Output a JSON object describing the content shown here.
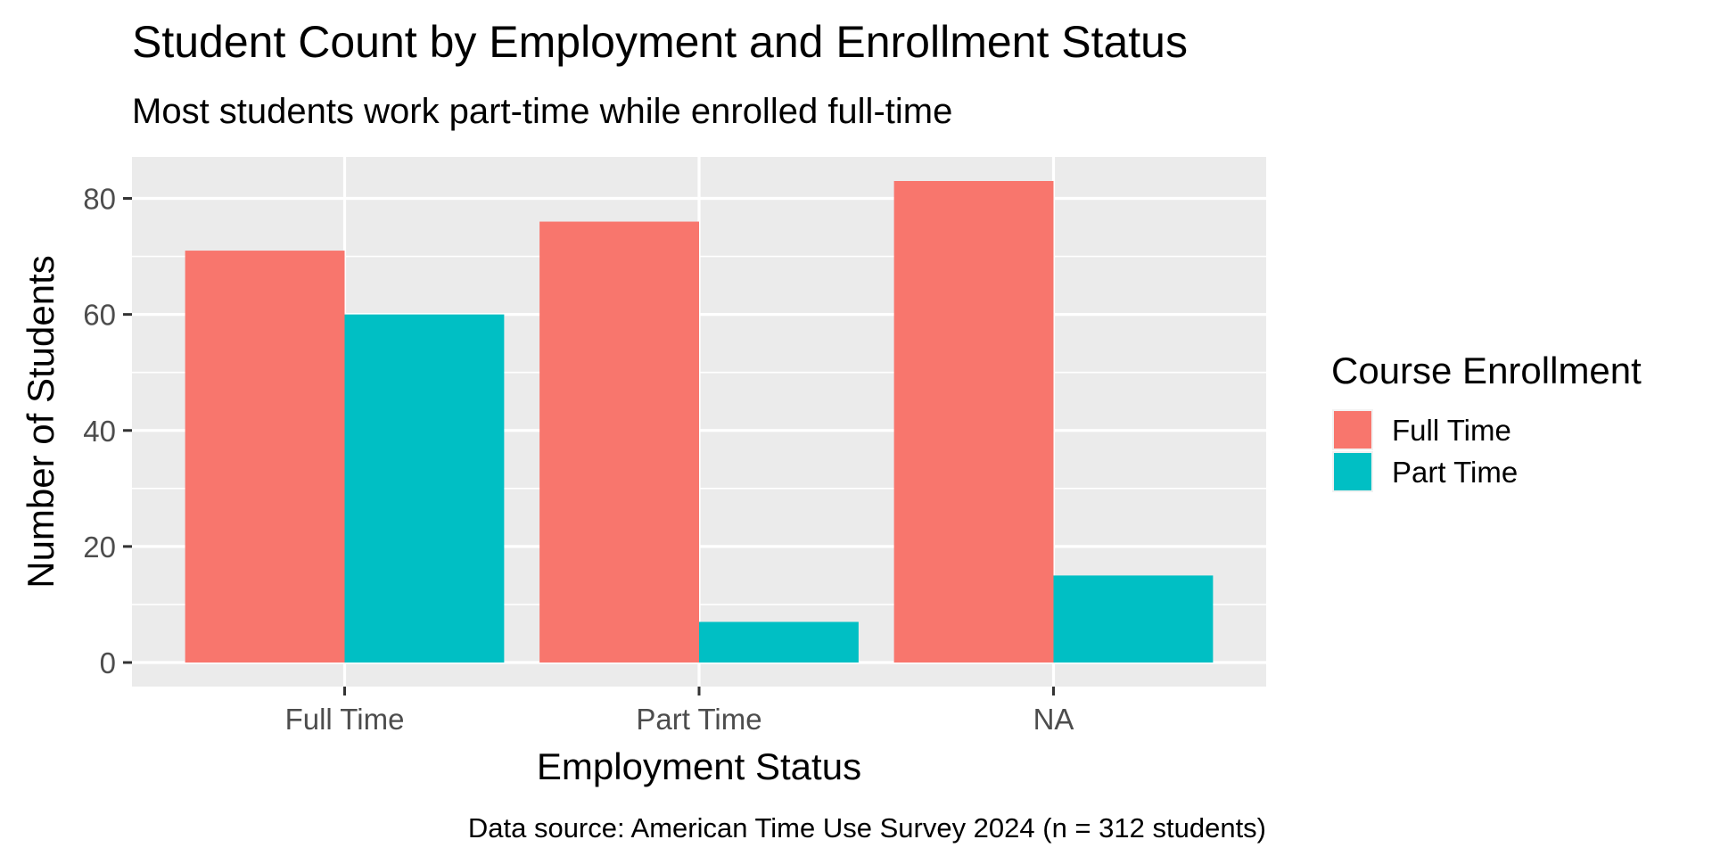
{
  "chart_data": {
    "type": "bar",
    "title": "Student Count by Employment and Enrollment Status",
    "subtitle": "Most students work part-time while enrolled full-time",
    "xlabel": "Employment Status",
    "ylabel": "Number of Students",
    "caption": "Data source: American Time Use Survey 2024 (n = 312 students)",
    "categories": [
      "Full Time",
      "Part Time",
      "NA"
    ],
    "series": [
      {
        "name": "Full Time",
        "color": "#F8766D",
        "values": [
          71,
          76,
          83
        ]
      },
      {
        "name": "Part Time",
        "color": "#00BFC4",
        "values": [
          60,
          7,
          15
        ]
      }
    ],
    "legend": {
      "title": "Course Enrollment",
      "position": "right"
    },
    "ylim": [
      -4.15,
      87.15
    ],
    "yticks": [
      0,
      20,
      40,
      60,
      80
    ],
    "grid": true,
    "panel_background": "#EBEBEB"
  }
}
